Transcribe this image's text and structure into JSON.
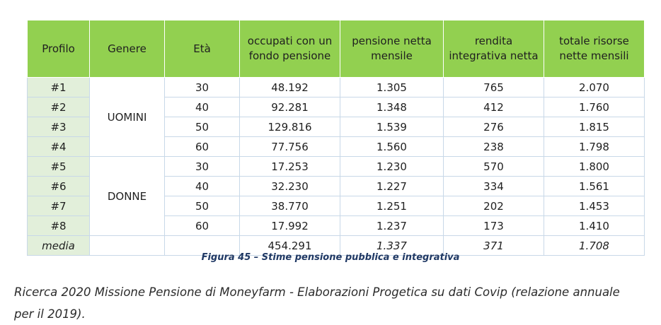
{
  "headers": [
    "Profilo",
    "Genere",
    "Età",
    "occupati con un fondo pensione",
    "pensione netta mensile",
    "rendita integrativa netta",
    "totale risorse nette mensili"
  ],
  "rows": [
    {
      "profilo": "#1",
      "eta": "30",
      "occupati": "48.192",
      "pensione": "1.305",
      "rendita": "765",
      "totale": "2.070"
    },
    {
      "profilo": "#2",
      "eta": "40",
      "occupati": "92.281",
      "pensione": "1.348",
      "rendita": "412",
      "totale": "1.760"
    },
    {
      "profilo": "#3",
      "eta": "50",
      "occupati": "129.816",
      "pensione": "1.539",
      "rendita": "276",
      "totale": "1.815"
    },
    {
      "profilo": "#4",
      "eta": "60",
      "occupati": "77.756",
      "pensione": "1.560",
      "rendita": "238",
      "totale": "1.798"
    },
    {
      "profilo": "#5",
      "eta": "30",
      "occupati": "17.253",
      "pensione": "1.230",
      "rendita": "570",
      "totale": "1.800"
    },
    {
      "profilo": "#6",
      "eta": "40",
      "occupati": "32.230",
      "pensione": "1.227",
      "rendita": "334",
      "totale": "1.561"
    },
    {
      "profilo": "#7",
      "eta": "50",
      "occupati": "38.770",
      "pensione": "1.251",
      "rendita": "202",
      "totale": "1.453"
    },
    {
      "profilo": "#8",
      "eta": "60",
      "occupati": "17.992",
      "pensione": "1.237",
      "rendita": "173",
      "totale": "1.410"
    }
  ],
  "groups": [
    "UOMINI",
    "DONNE"
  ],
  "media": {
    "label": "media",
    "occupati": "454.291",
    "pensione": "1.337",
    "rendita": "371",
    "totale": "1.708"
  },
  "caption": "Figura 45 – Stime pensione pubblica e integrativa",
  "source": "Ricerca 2020 Missione Pensione di Moneyfarm - Elaborazioni Progetica su dati Covip (relazione annuale per il 2019).",
  "colors": {
    "header_bg": "#92d050",
    "profile_bg": "#e2efda",
    "caption": "#1f3864"
  }
}
